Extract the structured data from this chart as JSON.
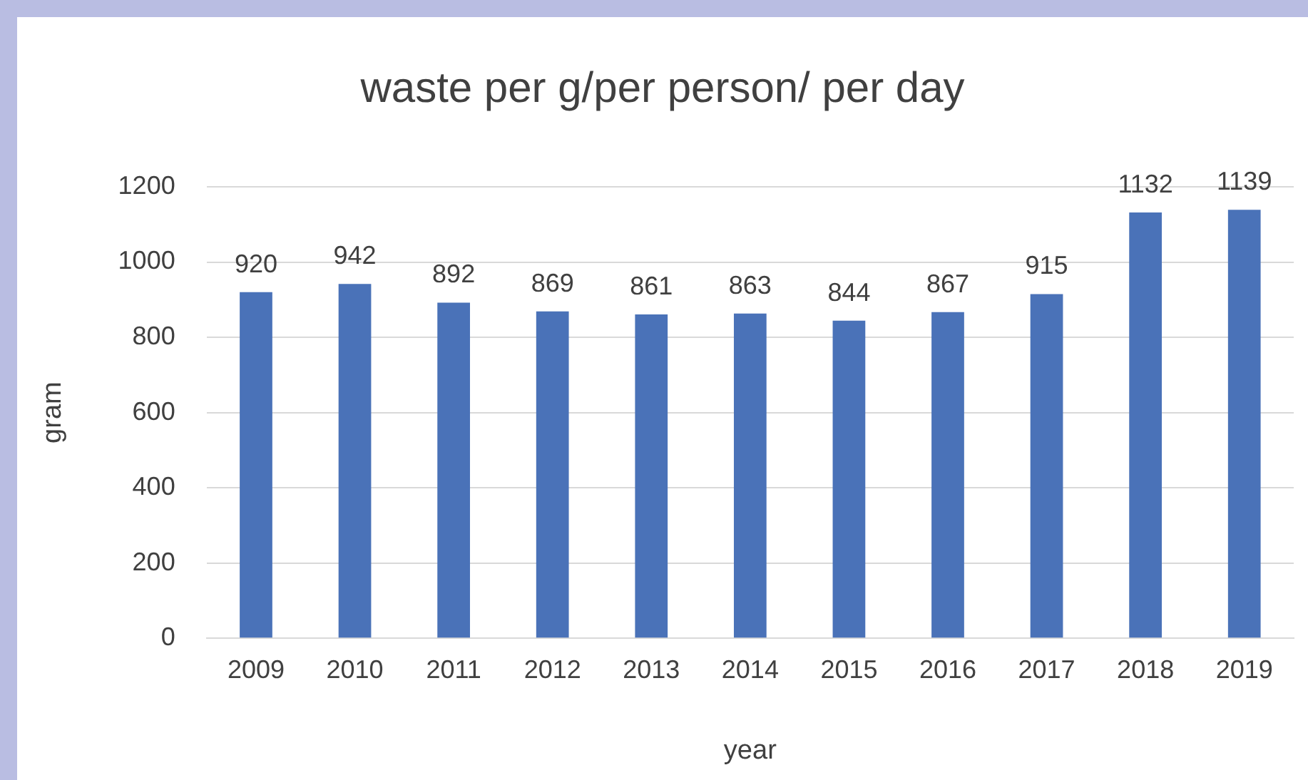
{
  "chart_data": {
    "type": "bar",
    "title": "waste per g/per person/ per day",
    "xlabel": "year",
    "ylabel": "gram",
    "categories": [
      "2009",
      "2010",
      "2011",
      "2012",
      "2013",
      "2014",
      "2015",
      "2016",
      "2017",
      "2018",
      "2019"
    ],
    "values": [
      920,
      942,
      892,
      869,
      861,
      863,
      844,
      867,
      915,
      1132,
      1139
    ],
    "color": "#4a72b8",
    "ylim": [
      0,
      1200
    ],
    "yticks": [
      0,
      200,
      400,
      600,
      800,
      1000,
      1200
    ],
    "grid": "y",
    "data_labels": true,
    "legend": false
  }
}
